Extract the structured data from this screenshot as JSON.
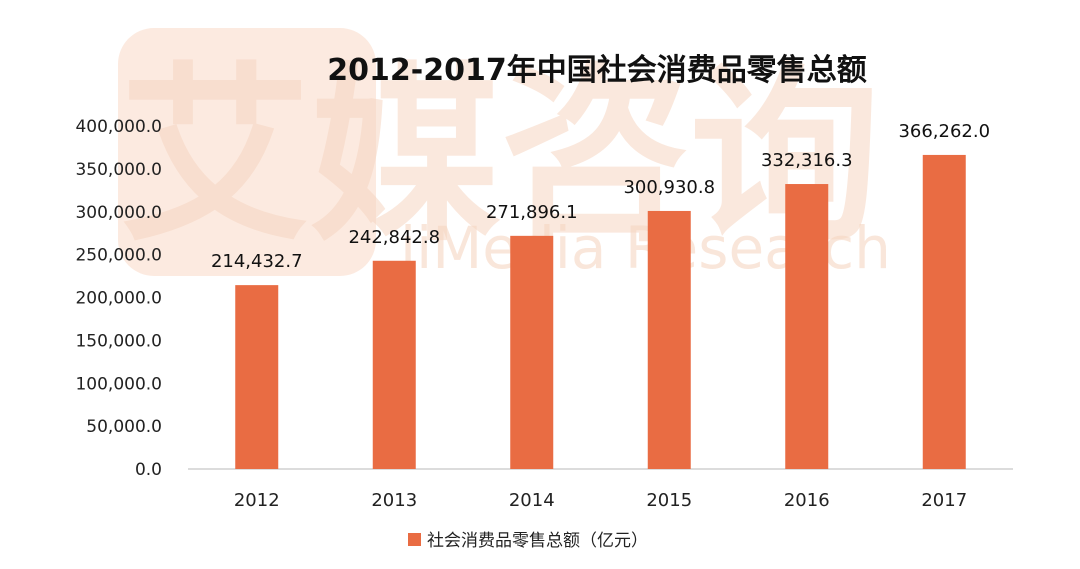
{
  "watermark": {
    "brand_cn": "艾媒咨询",
    "brand_en": "iiMedia Research",
    "color": "#f6d6c2"
  },
  "chart_data": {
    "type": "bar",
    "title": "2012-2017年中国社会消费品零售总额",
    "categories": [
      "2012",
      "2013",
      "2014",
      "2015",
      "2016",
      "2017"
    ],
    "series": [
      {
        "name": "社会消费品零售总额（亿元）",
        "values": [
          214432.7,
          242842.8,
          271896.1,
          300930.8,
          332316.3,
          366262.0
        ],
        "labels": [
          "214,432.7",
          "242,842.8",
          "271,896.1",
          "300,930.8",
          "332,316.3",
          "366,262.0"
        ],
        "color": "#e96c43"
      }
    ],
    "ylim": [
      0,
      400000
    ],
    "yticks": [
      0,
      50000,
      100000,
      150000,
      200000,
      250000,
      300000,
      350000,
      400000
    ],
    "ytick_labels": [
      "0.0",
      "50,000.0",
      "100,000.0",
      "150,000.0",
      "200,000.0",
      "250,000.0",
      "300,000.0",
      "350,000.0",
      "400,000.0"
    ],
    "xlabel": "",
    "ylabel": "",
    "grid": false,
    "legend": "bottom"
  }
}
